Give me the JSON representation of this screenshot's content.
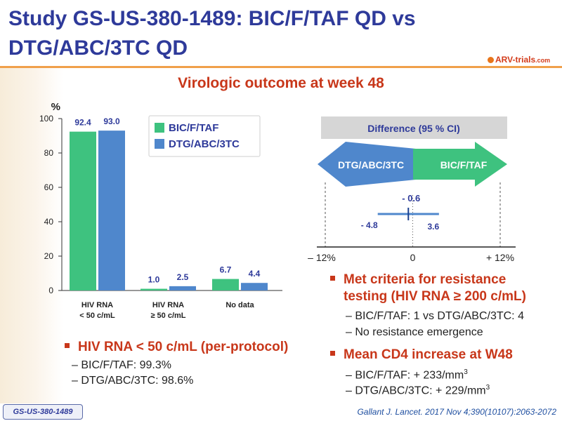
{
  "slide": {
    "title_line1": "Study GS-US-380-1489: BIC/F/TAF QD vs",
    "title_line2": "DTG/ABC/3TC QD",
    "logo_text": "ARV-trials",
    "logo_suffix": ".com",
    "subtitle": "Virologic outcome at week 48"
  },
  "colors": {
    "series1": "#3ec27f",
    "series2": "#4f87cc",
    "accent": "#c8371a",
    "title": "#2e3a9a"
  },
  "chart_data": [
    {
      "type": "bar",
      "ylabel": "%",
      "ylim": [
        0,
        100
      ],
      "yticks": [
        0,
        20,
        40,
        60,
        80,
        100
      ],
      "categories": [
        {
          "line1": "HIV RNA",
          "line2": "< 50 c/mL"
        },
        {
          "line1": "HIV RNA",
          "line2": "≥ 50 c/mL"
        },
        {
          "line1": "No data",
          "line2": ""
        }
      ],
      "series": [
        {
          "name": "BIC/F/TAF",
          "values": [
            92.4,
            1.0,
            6.7
          ],
          "labels": [
            "92.4",
            "1.0",
            "6.7"
          ]
        },
        {
          "name": "DTG/ABC/3TC",
          "values": [
            93.0,
            2.5,
            4.4
          ],
          "labels": [
            "93.0",
            "2.5",
            "4.4"
          ]
        }
      ],
      "legend": "top-right"
    },
    {
      "type": "forest",
      "header": "Difference (95 % CI)",
      "arrow_left_label": "DTG/ABC/3TC",
      "arrow_right_label": "BIC/F/TAF",
      "xlim": [
        -12,
        12
      ],
      "x_tick_labels": {
        "left": "– 12%",
        "center": "0",
        "right": "+ 12%"
      },
      "estimate": -0.6,
      "ci_lower": -4.8,
      "ci_upper": 3.6,
      "estimate_label": "- 0.6",
      "ci_lower_label": "- 4.8",
      "ci_upper_label": "3.6"
    }
  ],
  "left_notes": {
    "heading": "HIV RNA < 50 c/mL (per-protocol)",
    "items": [
      "– BIC/F/TAF: 99.3%",
      "– DTG/ABC/3TC: 98.6%"
    ]
  },
  "right_notes": {
    "resistance_heading_1": "Met criteria for resistance",
    "resistance_heading_2": "testing (HIV RNA ≥ 200 c/mL)",
    "resistance_items": [
      "– BIC/F/TAF: 1 vs DTG/ABC/3TC: 4",
      "– No resistance emergence"
    ],
    "cd4_heading": "Mean CD4 increase at W48",
    "cd4_items": [
      {
        "text": "– BIC/F/TAF: + 233/mm",
        "sup": "3"
      },
      {
        "text": "– DTG/ABC/3TC: + 229/mm",
        "sup": "3"
      }
    ]
  },
  "footer": {
    "study_tag": "GS-US-380-1489",
    "citation": "Gallant J. Lancet. 2017 Nov 4;390(10107):2063-2072"
  }
}
